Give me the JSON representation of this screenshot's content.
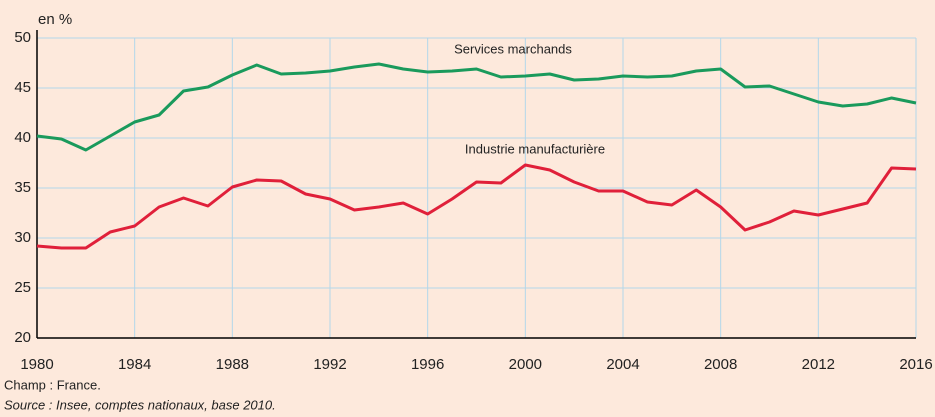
{
  "chart_data": {
    "type": "line",
    "y_axis_label": "en %",
    "x": [
      1980,
      1981,
      1982,
      1983,
      1984,
      1985,
      1986,
      1987,
      1988,
      1989,
      1990,
      1991,
      1992,
      1993,
      1994,
      1995,
      1996,
      1997,
      1998,
      1999,
      2000,
      2001,
      2002,
      2003,
      2004,
      2005,
      2006,
      2007,
      2008,
      2009,
      2010,
      2011,
      2012,
      2013,
      2014,
      2015,
      2016
    ],
    "series": [
      {
        "name": "Services marchands",
        "color": "#1a9a5c",
        "values": [
          40.2,
          39.9,
          38.8,
          40.2,
          41.6,
          42.3,
          44.7,
          45.1,
          46.3,
          47.3,
          46.4,
          46.5,
          46.7,
          47.1,
          47.4,
          46.9,
          46.6,
          46.7,
          46.9,
          46.1,
          46.2,
          46.4,
          45.8,
          45.9,
          46.2,
          46.1,
          46.2,
          46.7,
          46.9,
          45.1,
          45.2,
          44.4,
          43.6,
          43.2,
          43.4,
          44.0,
          43.5
        ]
      },
      {
        "name": "Industrie manufacturière",
        "color": "#e0203a",
        "values": [
          29.2,
          29.0,
          29.0,
          30.6,
          31.2,
          33.1,
          34.0,
          33.2,
          35.1,
          35.8,
          35.7,
          34.4,
          33.9,
          32.8,
          33.1,
          33.5,
          32.4,
          33.9,
          35.6,
          35.5,
          37.3,
          36.8,
          35.6,
          34.7,
          34.7,
          33.6,
          33.3,
          34.8,
          33.1,
          30.8,
          31.6,
          32.7,
          32.3,
          32.9,
          33.5,
          37.0,
          36.9
        ]
      }
    ],
    "xlim": [
      1980,
      2016
    ],
    "xticks": [
      1980,
      1984,
      1988,
      1992,
      1996,
      2000,
      2004,
      2008,
      2012,
      2016
    ],
    "ylim": [
      20,
      50
    ],
    "yticks": [
      20,
      25,
      30,
      35,
      40,
      45,
      50
    ],
    "grid": true,
    "notes": [
      "Champ : France.",
      "Source : Insee, comptes nationaux, base 2010."
    ]
  }
}
